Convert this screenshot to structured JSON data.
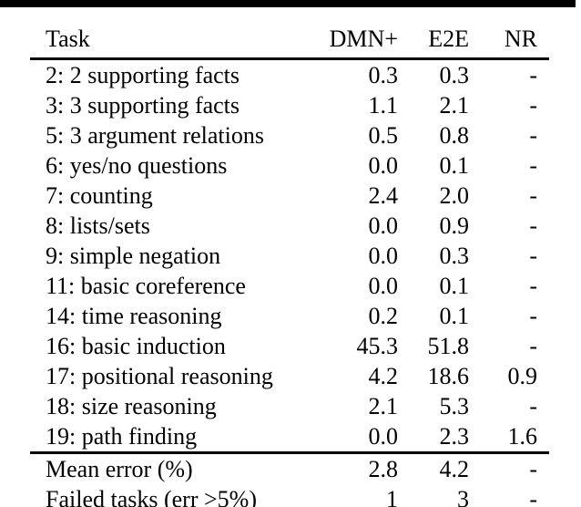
{
  "figure": {
    "background_color": "#ffffff",
    "text_color": "#000000",
    "rule_color": "#000000"
  },
  "table": {
    "columns": [
      "Task",
      "DMN+",
      "E2E",
      "NR"
    ],
    "rows": [
      {
        "task": "2: 2 supporting facts",
        "dmn": "0.3",
        "e2e": "0.3",
        "nr": "-"
      },
      {
        "task": "3: 3 supporting facts",
        "dmn": "1.1",
        "e2e": "2.1",
        "nr": "-"
      },
      {
        "task": "5: 3 argument relations",
        "dmn": "0.5",
        "e2e": "0.8",
        "nr": "-"
      },
      {
        "task": "6: yes/no questions",
        "dmn": "0.0",
        "e2e": "0.1",
        "nr": "-"
      },
      {
        "task": "7: counting",
        "dmn": "2.4",
        "e2e": "2.0",
        "nr": "-"
      },
      {
        "task": "8: lists/sets",
        "dmn": "0.0",
        "e2e": "0.9",
        "nr": "-"
      },
      {
        "task": "9: simple negation",
        "dmn": "0.0",
        "e2e": "0.3",
        "nr": "-"
      },
      {
        "task": "11: basic coreference",
        "dmn": "0.0",
        "e2e": "0.1",
        "nr": "-"
      },
      {
        "task": "14: time reasoning",
        "dmn": "0.2",
        "e2e": "0.1",
        "nr": "-"
      },
      {
        "task": "16: basic induction",
        "dmn": "45.3",
        "e2e": "51.8",
        "nr": "-"
      },
      {
        "task": "17: positional reasoning",
        "dmn": "4.2",
        "e2e": "18.6",
        "nr": "0.9"
      },
      {
        "task": "18: size reasoning",
        "dmn": "2.1",
        "e2e": "5.3",
        "nr": "-"
      },
      {
        "task": "19: path finding",
        "dmn": "0.0",
        "e2e": "2.3",
        "nr": "1.6"
      }
    ],
    "summary_rows": [
      {
        "task": "Mean error (%)",
        "dmn": "2.8",
        "e2e": "4.2",
        "nr": "-"
      },
      {
        "task": "Failed tasks (err >5%)",
        "dmn": "1",
        "e2e": "3",
        "nr": "-"
      }
    ]
  }
}
